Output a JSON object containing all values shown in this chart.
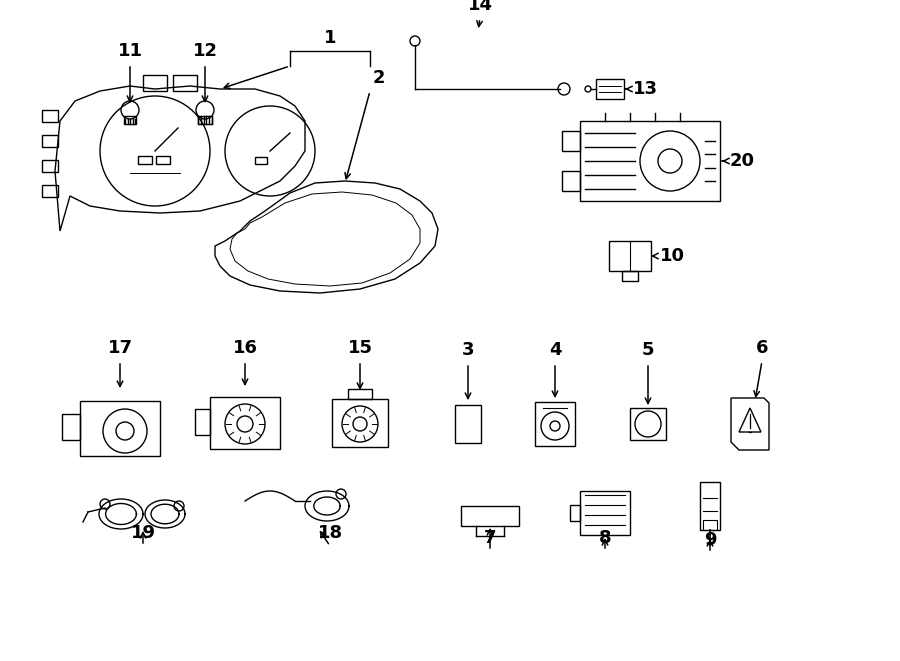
{
  "bg_color": "#ffffff",
  "line_color": "#000000",
  "figsize": [
    9.0,
    6.61
  ],
  "dpi": 100,
  "lw": 1.0
}
